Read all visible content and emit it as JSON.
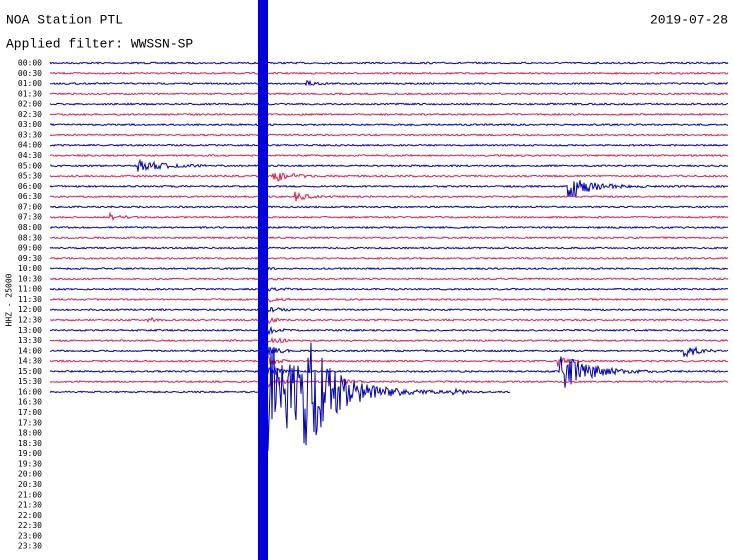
{
  "header": {
    "station": "NOA Station PTL",
    "filter": "Applied filter: WWSSN-SP",
    "date": "2019-07-28"
  },
  "channel": "HHZ - 25000",
  "time_labels": [
    "00:00",
    "00:30",
    "01:00",
    "01:30",
    "02:00",
    "02:30",
    "03:00",
    "03:30",
    "04:00",
    "04:30",
    "05:00",
    "05:30",
    "06:00",
    "06:30",
    "07:00",
    "07:30",
    "08:00",
    "08:30",
    "09:00",
    "09:30",
    "10:00",
    "10:30",
    "11:00",
    "11:30",
    "12:00",
    "12:30",
    "13:00",
    "13:30",
    "14:00",
    "14:30",
    "15:00",
    "15:30",
    "16:00",
    "16:30",
    "17:00",
    "17:30",
    "18:00",
    "18:30",
    "19:00",
    "19:30",
    "20:00",
    "20:30",
    "21:00",
    "21:30",
    "22:00",
    "22:30",
    "23:00",
    "23:30"
  ]
}
